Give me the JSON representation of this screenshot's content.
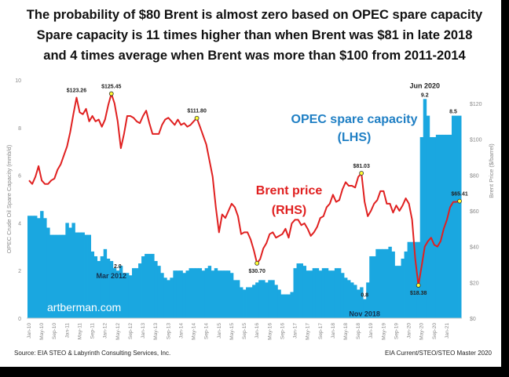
{
  "titles": [
    "The probability of $80 Brent is almost zero based on OPEC spare capacity",
    "Spare capacity is 11 times higher than when Brent was $81 in late 2018",
    "and 4 times average when Brent was more than $100 from 2011-2014"
  ],
  "source_left": "Source: EIA STEO &  Labyrinth Consulting Services, Inc.",
  "source_right": "EIA Current/STEO/STEO Master 2020",
  "watermark": "artberman.com",
  "chart_data": {
    "type": "bar+line",
    "start_month": "Jan-10",
    "x_tick_labels": [
      "Jan-10",
      "May-10",
      "Sep-10",
      "Jan-11",
      "May-11",
      "Sep-11",
      "Jan-12",
      "May-12",
      "Sep-12",
      "Jan-13",
      "May-13",
      "Sep-13",
      "Jan-14",
      "May-14",
      "Sep-14",
      "Jan-15",
      "May-15",
      "Sep-15",
      "Jan-16",
      "May-16",
      "Sep-16",
      "Jan-17",
      "May-17",
      "Sep-17",
      "Jan-18",
      "May-18",
      "Sep-18",
      "Jan-19",
      "May-19",
      "Sep-19",
      "Jan-20",
      "May-20",
      "Sep-20",
      "Jan-21"
    ],
    "left_axis": {
      "label": "OPEC Crude Oil Spare Capacity (mmb/d)",
      "range": [
        0,
        10
      ],
      "ticks": [
        "0",
        "2",
        "4",
        "6",
        "8",
        "10"
      ]
    },
    "right_axis": {
      "label": "Brent Price ($/barrel)",
      "range": [
        0,
        120
      ],
      "ticks": [
        "$0",
        "$20",
        "$40",
        "$60",
        "$80",
        "$100",
        "$120"
      ]
    },
    "series": [
      {
        "name": "OPEC spare capacity",
        "legend": "OPEC spare capacity",
        "legend2": "(LHS)",
        "axis": "left",
        "type": "bar",
        "color": "#1aa7e0",
        "values": [
          4.3,
          4.3,
          4.3,
          4.2,
          4.5,
          4.2,
          3.8,
          3.5,
          3.5,
          3.5,
          3.5,
          3.5,
          4.0,
          3.8,
          4.0,
          3.6,
          3.6,
          3.6,
          3.5,
          3.5,
          2.8,
          2.6,
          2.4,
          2.6,
          2.9,
          2.5,
          2.4,
          2.1,
          2.0,
          2.2,
          1.9,
          1.9,
          1.8,
          2.1,
          2.1,
          2.3,
          2.6,
          2.7,
          2.7,
          2.7,
          2.4,
          2.2,
          1.9,
          1.7,
          1.6,
          1.7,
          2.0,
          2.0,
          2.0,
          1.9,
          2.0,
          2.1,
          2.1,
          2.1,
          2.1,
          2.0,
          2.1,
          2.2,
          2.0,
          2.1,
          2.0,
          2.0,
          2.0,
          2.0,
          1.9,
          1.6,
          1.6,
          1.3,
          1.2,
          1.3,
          1.3,
          1.4,
          1.5,
          1.6,
          1.6,
          1.5,
          1.6,
          1.6,
          1.4,
          1.2,
          1.0,
          1.0,
          1.0,
          1.1,
          2.1,
          2.3,
          2.3,
          2.2,
          2.0,
          2.0,
          2.1,
          2.1,
          2.0,
          2.1,
          2.1,
          2.0,
          2.0,
          2.1,
          2.1,
          1.9,
          1.7,
          1.6,
          1.5,
          1.4,
          1.2,
          1.3,
          0.8,
          1.5,
          2.6,
          2.6,
          2.9,
          2.9,
          2.9,
          2.9,
          3.0,
          2.8,
          2.2,
          2.2,
          2.5,
          2.8,
          3.2,
          3.2,
          3.2,
          3.2,
          7.6,
          9.2,
          8.5,
          7.6,
          7.6,
          7.7,
          7.7,
          7.7,
          7.7,
          7.7,
          8.5,
          8.5,
          8.5
        ]
      },
      {
        "name": "Brent price",
        "legend": "Brent price",
        "legend2": "(RHS)",
        "axis": "right",
        "type": "line",
        "color": "#e02020",
        "values": [
          77,
          75,
          79,
          85,
          77,
          75,
          75,
          77,
          78,
          83,
          86,
          91,
          96,
          104,
          114,
          123.26,
          115,
          114,
          117,
          110,
          113,
          110,
          111,
          107,
          111,
          119,
          125.45,
          120,
          110,
          95,
          103,
          113,
          113,
          112,
          110,
          109,
          113,
          116,
          109,
          103,
          103,
          103,
          108,
          111,
          112,
          110,
          108,
          111,
          108,
          109,
          107,
          108,
          110,
          111.8,
          107,
          102,
          97,
          88,
          79,
          62,
          48,
          58,
          56,
          60,
          64,
          62,
          57,
          47,
          48,
          48,
          44,
          38,
          30.7,
          33,
          39,
          42,
          47,
          48,
          45,
          46,
          47,
          50,
          45,
          53,
          55,
          55,
          52,
          53,
          50,
          46,
          48,
          51,
          56,
          57,
          62,
          64,
          69,
          65,
          66,
          72,
          76,
          74,
          74,
          73,
          79,
          81.03,
          65,
          57,
          60,
          64,
          66,
          71,
          71,
          64,
          64,
          59,
          63,
          60,
          63,
          67,
          64,
          55,
          33,
          18.38,
          29,
          40,
          43,
          45,
          41,
          40,
          43,
          50,
          55,
          62,
          65,
          65,
          65.41
        ]
      }
    ],
    "annotations": [
      {
        "text": "$123.26",
        "series": 1,
        "index": 15
      },
      {
        "text": "$125.45",
        "series": 1,
        "index": 26,
        "marker": true
      },
      {
        "text": "$111.80",
        "series": 1,
        "index": 53,
        "marker": true
      },
      {
        "text": "$30.70",
        "series": 1,
        "index": 72,
        "marker": true,
        "below": true
      },
      {
        "text": "$81.03",
        "series": 1,
        "index": 105,
        "marker": true
      },
      {
        "text": "$18.38",
        "series": 1,
        "index": 123,
        "marker": true,
        "below": true
      },
      {
        "text": "$65.41",
        "series": 1,
        "index": 136,
        "marker": true
      },
      {
        "text": "2.0",
        "series": 0,
        "index": 28
      },
      {
        "text": "Mar 2012",
        "series": 0,
        "index": 26,
        "offset": "below"
      },
      {
        "text": "0.8",
        "series": 0,
        "index": 106
      },
      {
        "text": "Nov 2018",
        "series": 0,
        "index": 106,
        "offset": "below"
      },
      {
        "text": "9.2",
        "series": 0,
        "index": 125
      },
      {
        "text": "Jun 2020",
        "series": 0,
        "index": 125,
        "offset": "above"
      },
      {
        "text": "8.5",
        "series": 0,
        "index": 134
      }
    ]
  }
}
